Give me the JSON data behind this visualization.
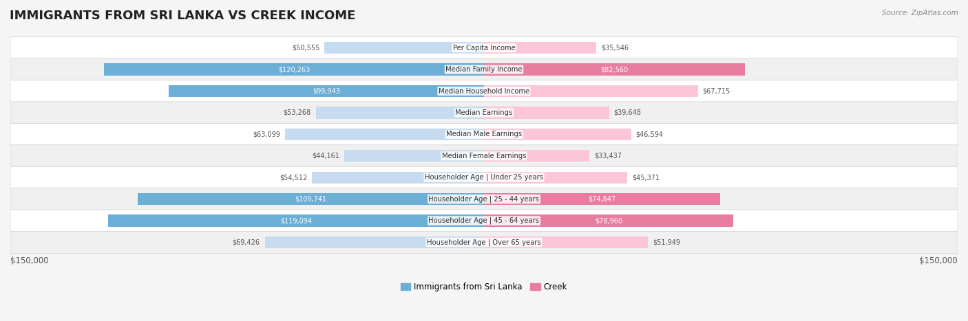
{
  "title": "IMMIGRANTS FROM SRI LANKA VS CREEK INCOME",
  "source": "Source: ZipAtlas.com",
  "categories": [
    "Per Capita Income",
    "Median Family Income",
    "Median Household Income",
    "Median Earnings",
    "Median Male Earnings",
    "Median Female Earnings",
    "Householder Age | Under 25 years",
    "Householder Age | 25 - 44 years",
    "Householder Age | 45 - 64 years",
    "Householder Age | Over 65 years"
  ],
  "sri_lanka_values": [
    50555,
    120263,
    99943,
    53268,
    63099,
    44161,
    54512,
    109741,
    119094,
    69426
  ],
  "creek_values": [
    35546,
    82560,
    67715,
    39648,
    46594,
    33437,
    45371,
    74847,
    78960,
    51949
  ],
  "max_value": 150000,
  "sri_lanka_color_dark": "#6baed6",
  "sri_lanka_color_light": "#c6dbef",
  "creek_color_dark": "#e87da0",
  "creek_color_light": "#fcc5d8",
  "threshold_dark": 70000,
  "background_color": "#f5f5f5",
  "row_bg_color": "#ffffff",
  "row_alt_color": "#f0f0f0",
  "label_color_white": "#ffffff",
  "label_color_dark": "#555555",
  "bar_height": 0.55,
  "legend_label_sri_lanka": "Immigrants from Sri Lanka",
  "legend_label_creek": "Creek",
  "xlim": 150000,
  "xlabel_left": "$150,000",
  "xlabel_right": "$150,000"
}
